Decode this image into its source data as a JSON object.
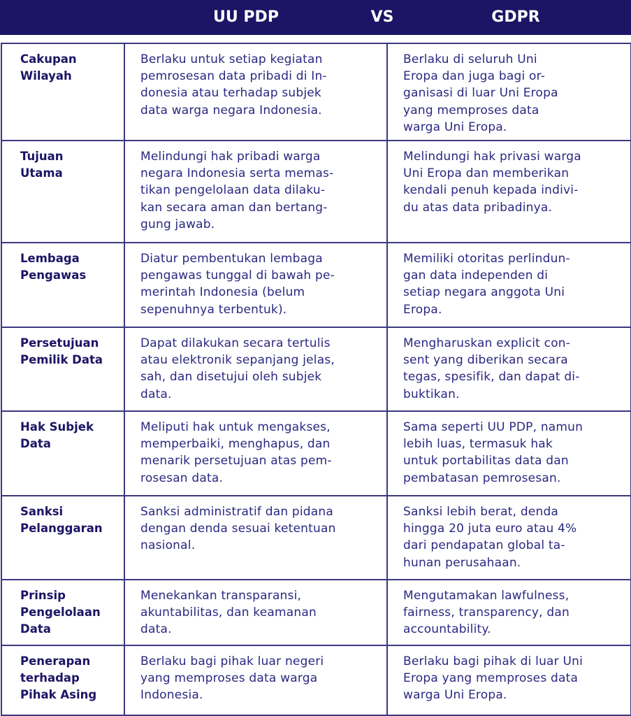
{
  "header": {
    "left": "UU PDP",
    "vs": "VS",
    "right": "GDPR"
  },
  "rows": [
    {
      "label": "Cakupan\nWilayah",
      "uupdp": "Berlaku untuk setiap kegiatan\npemrosesan data pribadi di In-\ndonesia atau terhadap subjek\ndata warga negara Indonesia.",
      "gdpr": "Berlaku di seluruh Uni\nEropa dan juga bagi or-\nganisasi di luar Uni Eropa\nyang memproses data\nwarga Uni Eropa."
    },
    {
      "label": "Tujuan\nUtama",
      "uupdp": "Melindungi hak pribadi warga\nnegara Indonesia serta memas-\ntikan pengelolaan data dilaku-\nkan secara aman dan bertang-\ngung jawab.",
      "gdpr": "Melindungi hak privasi warga\nUni Eropa dan memberikan\nkendali penuh kepada indivi-\ndu atas data pribadinya."
    },
    {
      "label": "Lembaga\nPengawas",
      "uupdp": "Diatur pembentukan lembaga\npengawas tunggal di bawah pe-\nmerintah Indonesia (belum\nsepenuhnya terbentuk).",
      "gdpr": "Memiliki otoritas perlindun-\ngan data independen di\nsetiap negara anggota Uni\nEropa."
    },
    {
      "label": "Persetujuan\nPemilik Data",
      "uupdp": "Dapat dilakukan secara tertulis\natau elektronik sepanjang jelas,\nsah, dan disetujui oleh subjek\ndata.",
      "gdpr": "Mengharuskan explicit con-\nsent yang diberikan secara\ntegas, spesifik, dan dapat di-\nbuktikan."
    },
    {
      "label": "Hak Subjek\nData",
      "uupdp": "Meliputi hak untuk mengakses,\nmemperbaiki, menghapus, dan\nmenarik persetujuan atas pem-\nrosesan data.",
      "gdpr": "Sama seperti UU PDP, namun\nlebih luas, termasuk hak\nuntuk portabilitas data dan\npembatasan pemrosesan."
    },
    {
      "label": "Sanksi\nPelanggaran",
      "uupdp": "Sanksi administratif dan pidana\ndengan denda sesuai ketentuan\nnasional.",
      "gdpr": "Sanksi lebih berat, denda\nhingga 20 juta euro atau 4%\ndari pendapatan global ta-\nhunan perusahaan."
    },
    {
      "label": "Prinsip\nPengelolaan\nData",
      "uupdp": "Menekankan transparansi,\nakuntabilitas, dan keamanan\ndata.",
      "gdpr": "Mengutamakan lawfulness,\nfairness, transparency, dan\naccountability."
    },
    {
      "label": "Penerapan\nterhadap\nPihak Asing",
      "uupdp": "Berlaku bagi pihak luar negeri\nyang memproses data warga\nIndonesia.",
      "gdpr": "Berlaku bagi pihak di luar Uni\nEropa yang memproses data\nwarga Uni Eropa."
    }
  ],
  "colors": {
    "header_bg": "#1c1464",
    "border": "#3b3780",
    "label_text": "#1c1464",
    "body_text": "#2b2880"
  }
}
